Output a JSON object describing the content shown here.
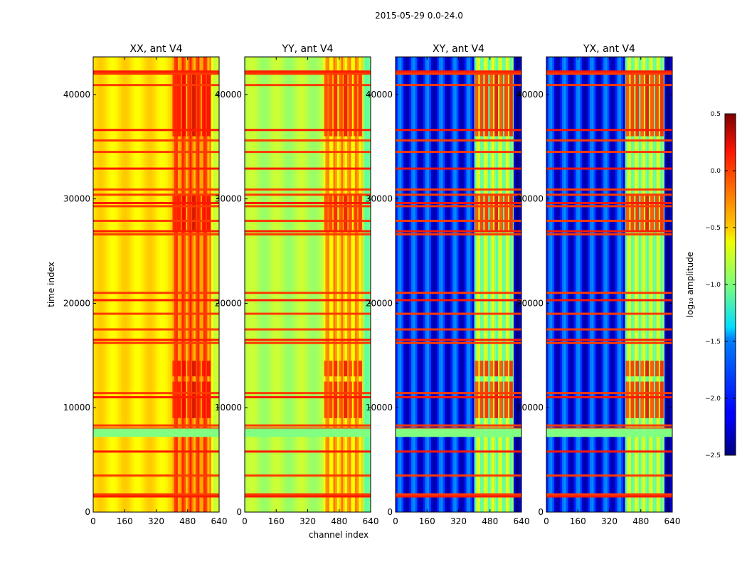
{
  "figure": {
    "suptitle": "2015-05-29 0.0-24.0"
  },
  "chart_data": {
    "type": "heatmap",
    "xlabel": "channel index",
    "ylabel": "time index",
    "xlim": [
      0,
      640
    ],
    "ylim": [
      0,
      43600
    ],
    "x_ticks": [
      "0",
      "160",
      "320",
      "480",
      "640"
    ],
    "y_ticks": [
      "0",
      "10000",
      "20000",
      "30000",
      "40000"
    ],
    "x_tick_values": [
      0,
      160,
      320,
      480,
      640
    ],
    "y_tick_values": [
      0,
      10000,
      20000,
      30000,
      40000
    ],
    "panels": [
      {
        "title": "XX, ant V4",
        "base_level": -0.55,
        "active_level": -0.2,
        "bright_level": 0.3
      },
      {
        "title": "YY, ant V4",
        "base_level": -0.85,
        "active_level": -0.45,
        "bright_level": 0.2
      },
      {
        "title": "XY, ant V4",
        "base_level": -2.05,
        "active_level": -0.9,
        "bright_level": 0.2
      },
      {
        "title": "YX, ant V4",
        "base_level": -2.05,
        "active_level": -0.9,
        "bright_level": 0.2
      }
    ],
    "active_channel_range": [
      400,
      600
    ],
    "flagged_time_rows": [
      1500,
      1700,
      3500,
      5800,
      8000,
      8300,
      11000,
      11400,
      16200,
      16500,
      17500,
      19000,
      20300,
      21000,
      26600,
      26900,
      27900,
      29300,
      29600,
      30400,
      30900,
      32900,
      34500,
      35600,
      36600,
      40900,
      42000,
      42200
    ],
    "colorbar": {
      "label": "log₁₀ amplitude",
      "min": -2.5,
      "max": 0.5,
      "ticks": [
        "0.5",
        "0.0",
        "−0.5",
        "−1.0",
        "−1.5",
        "−2.0",
        "−2.5"
      ],
      "tick_values": [
        0.5,
        0.0,
        -0.5,
        -1.0,
        -1.5,
        -2.0,
        -2.5
      ],
      "colormap": "jet"
    }
  }
}
